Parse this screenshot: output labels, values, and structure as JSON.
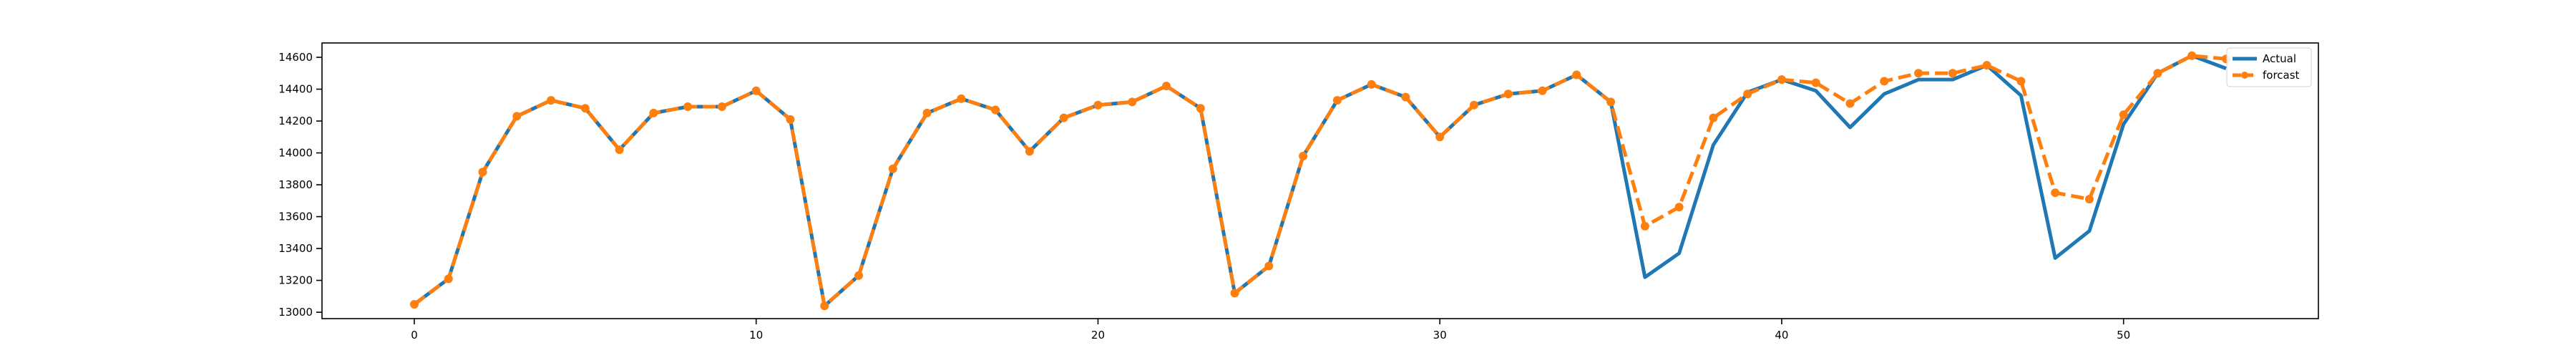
{
  "chart_data": {
    "type": "line",
    "title": "",
    "xlabel": "",
    "ylabel": "",
    "x": [
      0,
      1,
      2,
      3,
      4,
      5,
      6,
      7,
      8,
      9,
      10,
      11,
      12,
      13,
      14,
      15,
      16,
      17,
      18,
      19,
      20,
      21,
      22,
      23,
      24,
      25,
      26,
      27,
      28,
      29,
      30,
      31,
      32,
      33,
      34,
      35,
      36,
      37,
      38,
      39,
      40,
      41,
      42,
      43,
      44,
      45,
      46,
      47,
      48,
      49,
      50,
      51,
      52,
      53
    ],
    "xlim": [
      -2.7,
      55.7
    ],
    "ylim": [
      12960,
      14690
    ],
    "xticks": [
      0,
      10,
      20,
      30,
      40,
      50
    ],
    "yticks": [
      13000,
      13200,
      13400,
      13600,
      13800,
      14000,
      14200,
      14400,
      14600
    ],
    "grid": false,
    "legend": "top-right",
    "series": [
      {
        "name": "Actual",
        "style": "solid",
        "marker": "none",
        "color": "#1f77b4",
        "values": [
          13050,
          13210,
          13880,
          14230,
          14330,
          14280,
          14020,
          14250,
          14290,
          14290,
          14390,
          14210,
          13040,
          13230,
          13900,
          14250,
          14340,
          14270,
          14010,
          14220,
          14300,
          14320,
          14420,
          14280,
          13120,
          13290,
          13980,
          14330,
          14430,
          14350,
          14100,
          14300,
          14370,
          14390,
          14490,
          14320,
          13220,
          13370,
          14050,
          14380,
          14460,
          14390,
          14160,
          14370,
          14460,
          14460,
          14550,
          14360,
          13340,
          13510,
          14180,
          14500,
          14610,
          14530
        ]
      },
      {
        "name": "forcast",
        "style": "dashed",
        "marker": "circle",
        "color": "#ff7f0e",
        "values": [
          13050,
          13210,
          13880,
          14230,
          14330,
          14280,
          14020,
          14250,
          14290,
          14290,
          14390,
          14210,
          13040,
          13230,
          13900,
          14250,
          14340,
          14270,
          14010,
          14220,
          14300,
          14320,
          14420,
          14280,
          13120,
          13290,
          13980,
          14330,
          14430,
          14350,
          14100,
          14300,
          14370,
          14390,
          14490,
          14320,
          13540,
          13660,
          14220,
          14370,
          14460,
          14440,
          14310,
          14450,
          14500,
          14500,
          14550,
          14450,
          13750,
          13710,
          14240,
          14500,
          14610,
          14590
        ]
      }
    ]
  }
}
